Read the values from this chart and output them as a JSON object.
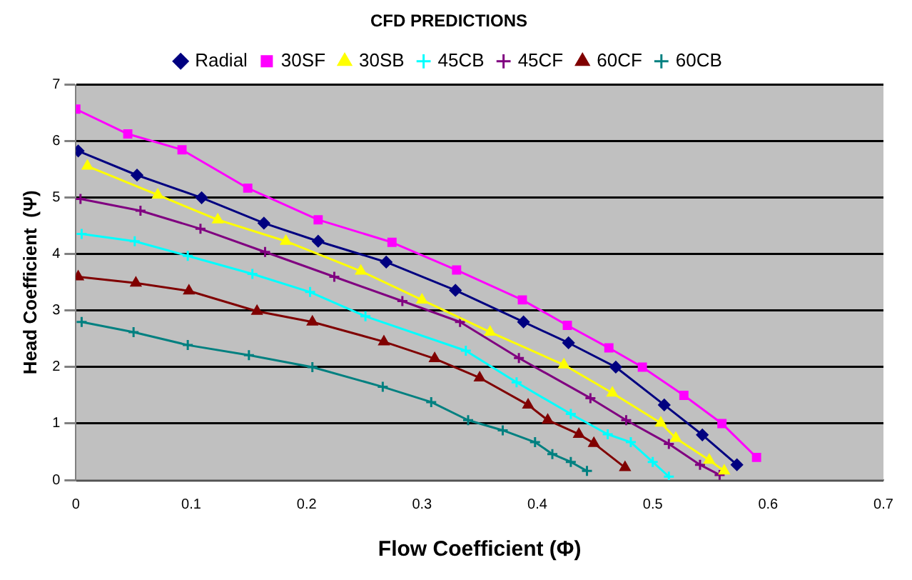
{
  "chart_data": {
    "type": "line",
    "title": "CFD PREDICTIONS",
    "xlabel": "Flow Coefficient (Φ)",
    "ylabel": "Head Coefficient  (Ψ)",
    "xlim": [
      0,
      0.7
    ],
    "xticks": [
      0,
      0.1,
      0.2,
      0.3,
      0.4,
      0.5,
      0.6,
      0.7
    ],
    "ylim": [
      0,
      7
    ],
    "yticks": [
      0,
      1,
      2,
      3,
      4,
      5,
      6,
      7
    ],
    "grid": "y",
    "legend": "top",
    "series": [
      {
        "name": "Radial",
        "color": "#000080",
        "marker": "diamond",
        "x": [
          0.002,
          0.053,
          0.109,
          0.163,
          0.21,
          0.269,
          0.329,
          0.388,
          0.427,
          0.468,
          0.51,
          0.543,
          0.573
        ],
        "values": [
          5.83,
          5.4,
          5.0,
          4.55,
          4.23,
          3.86,
          3.36,
          2.8,
          2.43,
          2.0,
          1.33,
          0.8,
          0.27
        ]
      },
      {
        "name": "30SF",
        "color": "#ff00ff",
        "marker": "square",
        "x": [
          0,
          0.045,
          0.092,
          0.149,
          0.21,
          0.274,
          0.33,
          0.387,
          0.426,
          0.462,
          0.491,
          0.527,
          0.56,
          0.59
        ],
        "values": [
          6.57,
          6.13,
          5.85,
          5.17,
          4.61,
          4.21,
          3.72,
          3.19,
          2.74,
          2.34,
          2.0,
          1.5,
          1.0,
          0.4
        ]
      },
      {
        "name": "30SB",
        "color": "#ffff00",
        "marker": "triangle",
        "x": [
          0.01,
          0.071,
          0.123,
          0.182,
          0.247,
          0.3,
          0.359,
          0.423,
          0.465,
          0.507,
          0.52,
          0.549,
          0.562
        ],
        "values": [
          5.56,
          5.05,
          4.61,
          4.23,
          3.7,
          3.19,
          2.62,
          2.04,
          1.54,
          1.01,
          0.74,
          0.35,
          0.16
        ]
      },
      {
        "name": "45CB",
        "color": "#00ffff",
        "marker": "cross",
        "x": [
          0.005,
          0.051,
          0.097,
          0.153,
          0.203,
          0.251,
          0.338,
          0.382,
          0.429,
          0.461,
          0.481,
          0.5,
          0.514
        ],
        "values": [
          4.36,
          4.23,
          3.97,
          3.65,
          3.33,
          2.9,
          2.29,
          1.73,
          1.17,
          0.81,
          0.67,
          0.32,
          0.06
        ]
      },
      {
        "name": "45CF",
        "color": "#800080",
        "marker": "cross",
        "x": [
          0.004,
          0.056,
          0.108,
          0.164,
          0.224,
          0.283,
          0.333,
          0.384,
          0.446,
          0.477,
          0.514,
          0.541,
          0.558
        ],
        "values": [
          4.98,
          4.77,
          4.45,
          4.04,
          3.6,
          3.17,
          2.8,
          2.16,
          1.45,
          1.06,
          0.64,
          0.27,
          0.09
        ]
      },
      {
        "name": "60CF",
        "color": "#800000",
        "marker": "triangle",
        "x": [
          0.002,
          0.052,
          0.098,
          0.157,
          0.205,
          0.267,
          0.311,
          0.35,
          0.392,
          0.409,
          0.436,
          0.449,
          0.476
        ],
        "values": [
          3.6,
          3.49,
          3.35,
          2.99,
          2.8,
          2.45,
          2.15,
          1.81,
          1.33,
          1.06,
          0.81,
          0.65,
          0.22
        ]
      },
      {
        "name": "60CB",
        "color": "#008080",
        "marker": "cross",
        "x": [
          0.005,
          0.05,
          0.097,
          0.15,
          0.205,
          0.266,
          0.308,
          0.34,
          0.37,
          0.398,
          0.413,
          0.429,
          0.443
        ],
        "values": [
          2.8,
          2.62,
          2.39,
          2.21,
          2.0,
          1.65,
          1.38,
          1.06,
          0.88,
          0.67,
          0.46,
          0.32,
          0.16
        ]
      }
    ]
  }
}
